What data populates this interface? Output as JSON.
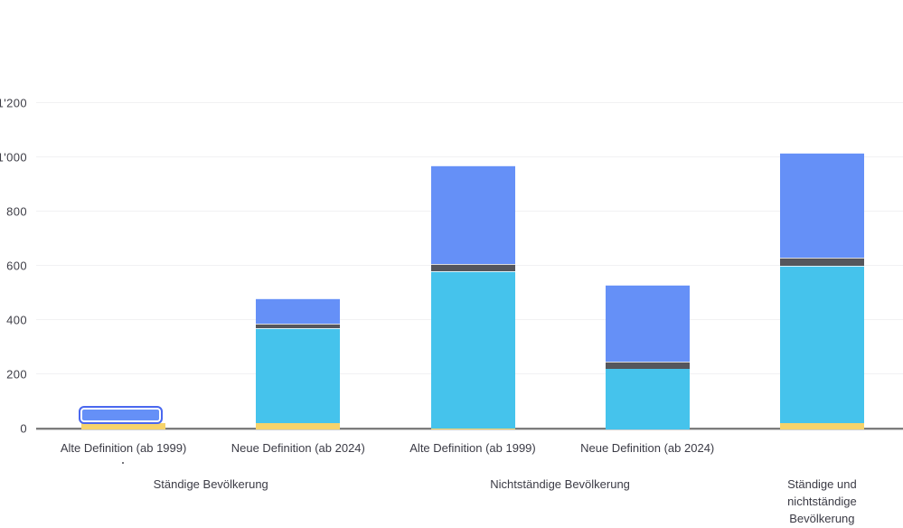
{
  "chart_data": {
    "type": "bar",
    "stacked": true,
    "title": "",
    "xlabel": "",
    "ylabel": "",
    "grid": true,
    "legend": "none",
    "number_format": "swiss apostrophe thousands separator",
    "categories": [
      "Alte Definition (ab 1999)",
      "Neue Definition (ab 2024)",
      "Alte Definition (ab 1999)",
      "Neue Definition (ab 2024)",
      ""
    ],
    "group_labels": [
      {
        "label": "Ständige Bevölkerung",
        "center_slot": 0.5
      },
      {
        "label": "Nichtständige Bevölkerung",
        "center_slot": 2.5
      },
      {
        "label": "Ständige und\nnichtständige Bevölkerung",
        "center_slot": 4
      }
    ],
    "series": [
      {
        "name": "segment-yellow",
        "color": "#F6D36B",
        "values": [
          25,
          25,
          5,
          0,
          25
        ]
      },
      {
        "name": "segment-cyan",
        "color": "#45C3EC",
        "values": [
          0,
          350,
          580,
          225,
          580
        ]
      },
      {
        "name": "segment-darkgray",
        "color": "#55565C",
        "values": [
          0,
          15,
          25,
          25,
          30
        ]
      },
      {
        "name": "segment-blue",
        "color": "#6590F7",
        "values": [
          45,
          95,
          365,
          285,
          385
        ]
      }
    ],
    "totals_estimated": [
      70,
      485,
      975,
      535,
      1020
    ],
    "y_ticks": [
      {
        "value": 0,
        "label": "0"
      },
      {
        "value": 200,
        "label": "200"
      },
      {
        "value": 400,
        "label": "400"
      },
      {
        "value": 600,
        "label": "600"
      },
      {
        "value": 800,
        "label": "800"
      },
      {
        "value": 1000,
        "label": "1'000"
      },
      {
        "value": 1200,
        "label": "1'200"
      }
    ],
    "ylim": [
      0,
      1280
    ],
    "highlighted_bar": 0,
    "highlighted_segment": "segment-blue",
    "highlight_stroke_color": "#4A68EF",
    "stray_mark": "."
  }
}
